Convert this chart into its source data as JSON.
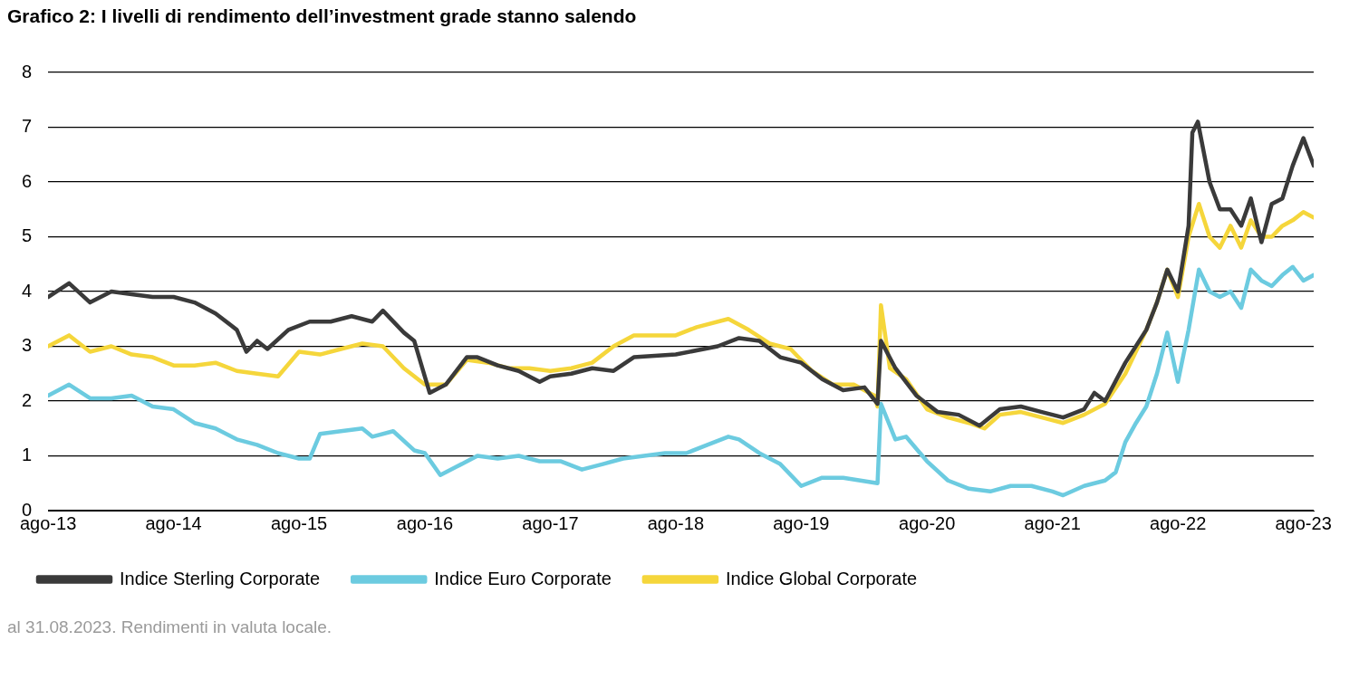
{
  "chart_data": {
    "type": "line",
    "title": "Grafico 2: I livelli di rendimento dell’investment grade stanno salendo",
    "annotations": [
      "al 31.08.2023. Rendimenti in valuta locale."
    ],
    "xlim": [
      "2013-08-01",
      "2023-08-31"
    ],
    "xticks": [
      {
        "value": "2013-08-01",
        "label": "ago-13"
      },
      {
        "value": "2014-08-01",
        "label": "ago-14"
      },
      {
        "value": "2015-08-01",
        "label": "ago-15"
      },
      {
        "value": "2016-08-01",
        "label": "ago-16"
      },
      {
        "value": "2017-08-01",
        "label": "ago-17"
      },
      {
        "value": "2018-08-01",
        "label": "ago-18"
      },
      {
        "value": "2019-08-01",
        "label": "ago-19"
      },
      {
        "value": "2020-08-01",
        "label": "ago-20"
      },
      {
        "value": "2021-08-01",
        "label": "ago-21"
      },
      {
        "value": "2022-08-01",
        "label": "ago-22"
      },
      {
        "value": "2023-08-01",
        "label": "ago-23"
      }
    ],
    "ylim": [
      0,
      8
    ],
    "yticks": [
      0,
      1,
      2,
      3,
      4,
      5,
      6,
      7,
      8
    ],
    "grid": "y",
    "legend": "bottom",
    "marker": "none",
    "line_style": "solid",
    "series": [
      {
        "name": "Indice Sterling Corporate",
        "color": "#3a3a3a",
        "x": [
          "2013-08-01",
          "2013-10-01",
          "2013-12-01",
          "2014-02-01",
          "2014-04-01",
          "2014-06-01",
          "2014-08-01",
          "2014-10-01",
          "2014-12-01",
          "2015-02-01",
          "2015-03-01",
          "2015-04-01",
          "2015-05-01",
          "2015-07-01",
          "2015-09-01",
          "2015-11-01",
          "2016-01-01",
          "2016-03-01",
          "2016-04-01",
          "2016-06-01",
          "2016-07-01",
          "2016-08-15",
          "2016-10-01",
          "2016-12-01",
          "2017-01-01",
          "2017-03-01",
          "2017-05-01",
          "2017-07-01",
          "2017-08-01",
          "2017-10-01",
          "2017-12-01",
          "2018-02-01",
          "2018-04-01",
          "2018-08-01",
          "2018-12-01",
          "2019-02-01",
          "2019-04-01",
          "2019-06-01",
          "2019-08-01",
          "2019-10-01",
          "2019-12-01",
          "2020-02-01",
          "2020-03-10",
          "2020-03-20",
          "2020-05-01",
          "2020-07-01",
          "2020-09-01",
          "2020-11-01",
          "2021-01-01",
          "2021-03-01",
          "2021-05-01",
          "2021-07-01",
          "2021-09-01",
          "2021-11-01",
          "2021-12-01",
          "2022-01-01",
          "2022-03-01",
          "2022-05-01",
          "2022-06-01",
          "2022-07-01",
          "2022-08-01",
          "2022-09-01",
          "2022-09-12",
          "2022-09-28",
          "2022-11-01",
          "2022-12-01",
          "2023-01-01",
          "2023-02-01",
          "2023-03-01",
          "2023-04-01",
          "2023-05-01",
          "2023-06-01",
          "2023-07-01",
          "2023-08-01",
          "2023-08-31"
        ],
        "values": [
          3.9,
          4.15,
          3.8,
          4.0,
          3.95,
          3.9,
          3.9,
          3.8,
          3.6,
          3.3,
          2.9,
          3.1,
          2.95,
          3.3,
          3.45,
          3.45,
          3.55,
          3.45,
          3.65,
          3.25,
          3.1,
          2.15,
          2.3,
          2.8,
          2.8,
          2.65,
          2.55,
          2.35,
          2.45,
          2.5,
          2.6,
          2.55,
          2.8,
          2.85,
          3.0,
          3.15,
          3.1,
          2.8,
          2.7,
          2.4,
          2.2,
          2.25,
          1.95,
          3.1,
          2.6,
          2.1,
          1.8,
          1.75,
          1.55,
          1.85,
          1.9,
          1.8,
          1.7,
          1.85,
          2.15,
          2.0,
          2.7,
          3.3,
          3.8,
          4.4,
          4.0,
          5.2,
          6.9,
          7.1,
          6.0,
          5.5,
          5.5,
          5.2,
          5.7,
          4.9,
          5.6,
          5.7,
          6.3,
          6.8,
          6.3
        ]
      },
      {
        "name": "Indice Euro Corporate",
        "color": "#6ccbe0",
        "x": [
          "2013-08-01",
          "2013-10-01",
          "2013-12-01",
          "2014-02-01",
          "2014-04-01",
          "2014-06-01",
          "2014-08-01",
          "2014-10-01",
          "2014-12-01",
          "2015-02-01",
          "2015-04-01",
          "2015-06-01",
          "2015-08-01",
          "2015-09-01",
          "2015-10-01",
          "2015-12-01",
          "2016-02-01",
          "2016-03-01",
          "2016-05-01",
          "2016-07-01",
          "2016-08-01",
          "2016-09-15",
          "2016-11-01",
          "2017-01-01",
          "2017-03-01",
          "2017-05-01",
          "2017-07-01",
          "2017-09-01",
          "2017-11-01",
          "2018-01-01",
          "2018-03-01",
          "2018-05-01",
          "2018-07-01",
          "2018-09-01",
          "2018-11-01",
          "2019-01-01",
          "2019-02-01",
          "2019-04-01",
          "2019-06-01",
          "2019-08-01",
          "2019-10-01",
          "2019-12-01",
          "2020-03-10",
          "2020-03-20",
          "2020-05-01",
          "2020-06-01",
          "2020-08-01",
          "2020-10-01",
          "2020-12-01",
          "2021-02-01",
          "2021-04-01",
          "2021-06-01",
          "2021-08-01",
          "2021-09-01",
          "2021-11-01",
          "2022-01-01",
          "2022-02-01",
          "2022-03-01",
          "2022-04-01",
          "2022-05-01",
          "2022-06-01",
          "2022-07-01",
          "2022-08-01",
          "2022-09-01",
          "2022-10-01",
          "2022-11-01",
          "2022-12-01",
          "2023-01-01",
          "2023-02-01",
          "2023-03-01",
          "2023-04-01",
          "2023-05-01",
          "2023-06-01",
          "2023-07-01",
          "2023-08-01",
          "2023-08-31"
        ],
        "values": [
          2.1,
          2.3,
          2.05,
          2.05,
          2.1,
          1.9,
          1.85,
          1.6,
          1.5,
          1.3,
          1.2,
          1.05,
          0.95,
          0.95,
          1.4,
          1.45,
          1.5,
          1.35,
          1.45,
          1.1,
          1.05,
          0.65,
          0.8,
          1.0,
          0.95,
          1.0,
          0.9,
          0.9,
          0.75,
          0.85,
          0.95,
          1.0,
          1.05,
          1.05,
          1.2,
          1.35,
          1.3,
          1.05,
          0.85,
          0.45,
          0.6,
          0.6,
          0.5,
          1.95,
          1.3,
          1.35,
          0.9,
          0.55,
          0.4,
          0.35,
          0.45,
          0.45,
          0.35,
          0.28,
          0.45,
          0.55,
          0.7,
          1.25,
          1.6,
          1.9,
          2.5,
          3.25,
          2.35,
          3.3,
          4.4,
          4.0,
          3.9,
          4.0,
          3.7,
          4.4,
          4.2,
          4.1,
          4.3,
          4.45,
          4.2,
          4.3
        ]
      },
      {
        "name": "Indice Global Corporate",
        "color": "#f5d63b",
        "x": [
          "2013-08-01",
          "2013-10-01",
          "2013-12-01",
          "2014-02-01",
          "2014-04-01",
          "2014-06-01",
          "2014-08-01",
          "2014-10-01",
          "2014-12-01",
          "2015-02-01",
          "2015-04-01",
          "2015-06-01",
          "2015-08-01",
          "2015-10-01",
          "2015-12-01",
          "2016-02-01",
          "2016-04-01",
          "2016-06-01",
          "2016-08-01",
          "2016-10-01",
          "2016-12-01",
          "2017-02-01",
          "2017-04-01",
          "2017-06-01",
          "2017-08-01",
          "2017-10-01",
          "2017-12-01",
          "2018-02-01",
          "2018-04-01",
          "2018-06-01",
          "2018-08-01",
          "2018-10-01",
          "2019-01-01",
          "2019-03-01",
          "2019-05-01",
          "2019-07-01",
          "2019-09-01",
          "2019-11-01",
          "2020-01-01",
          "2020-03-01",
          "2020-03-10",
          "2020-03-20",
          "2020-04-15",
          "2020-06-01",
          "2020-08-01",
          "2020-10-01",
          "2020-12-01",
          "2021-01-15",
          "2021-03-01",
          "2021-05-01",
          "2021-07-01",
          "2021-09-01",
          "2021-11-01",
          "2022-01-01",
          "2022-03-01",
          "2022-05-01",
          "2022-06-01",
          "2022-07-01",
          "2022-08-01",
          "2022-09-01",
          "2022-10-01",
          "2022-11-01",
          "2022-12-01",
          "2023-01-01",
          "2023-02-01",
          "2023-03-01",
          "2023-04-01",
          "2023-05-01",
          "2023-06-01",
          "2023-07-01",
          "2023-08-01",
          "2023-08-31"
        ],
        "values": [
          3.0,
          3.2,
          2.9,
          3.0,
          2.85,
          2.8,
          2.65,
          2.65,
          2.7,
          2.55,
          2.5,
          2.45,
          2.9,
          2.85,
          2.95,
          3.05,
          3.0,
          2.6,
          2.3,
          2.3,
          2.75,
          2.7,
          2.6,
          2.6,
          2.55,
          2.6,
          2.7,
          3.0,
          3.2,
          3.2,
          3.2,
          3.35,
          3.5,
          3.3,
          3.05,
          2.95,
          2.55,
          2.3,
          2.3,
          2.1,
          1.9,
          3.75,
          2.6,
          2.4,
          1.85,
          1.7,
          1.6,
          1.5,
          1.75,
          1.8,
          1.7,
          1.6,
          1.75,
          1.95,
          2.5,
          3.3,
          3.8,
          4.4,
          3.9,
          5.0,
          5.6,
          5.0,
          4.8,
          5.2,
          4.8,
          5.3,
          5.0,
          5.0,
          5.2,
          5.3,
          5.45,
          5.35
        ]
      }
    ]
  }
}
